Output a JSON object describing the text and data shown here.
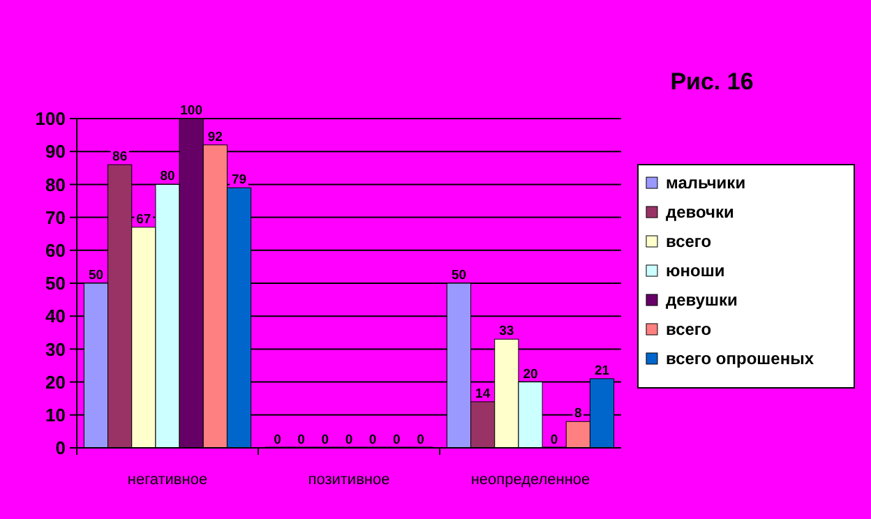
{
  "chart_data": {
    "type": "bar",
    "title": "Рис. 16",
    "categories": [
      "негативное",
      "позитивное",
      "неопределенное"
    ],
    "series": [
      {
        "name": "мальчики",
        "color": "#9999ff",
        "values": [
          50,
          0,
          50
        ]
      },
      {
        "name": "девочки",
        "color": "#993366",
        "values": [
          86,
          0,
          14
        ]
      },
      {
        "name": "всего",
        "color": "#ffffcc",
        "values": [
          67,
          0,
          33
        ]
      },
      {
        "name": "юноши",
        "color": "#ccffff",
        "values": [
          80,
          0,
          20
        ]
      },
      {
        "name": "девушки",
        "color": "#660066",
        "values": [
          100,
          0,
          0
        ]
      },
      {
        "name": "всего",
        "color": "#ff8080",
        "values": [
          92,
          0,
          8
        ]
      },
      {
        "name": "всего опрошеных",
        "color": "#0066cc",
        "values": [
          79,
          0,
          21
        ]
      }
    ],
    "ylim": [
      0,
      100
    ],
    "yticks": [
      0,
      10,
      20,
      30,
      40,
      50,
      60,
      70,
      80,
      90,
      100
    ],
    "grid": "y",
    "legend": "right",
    "data_labels": true
  }
}
